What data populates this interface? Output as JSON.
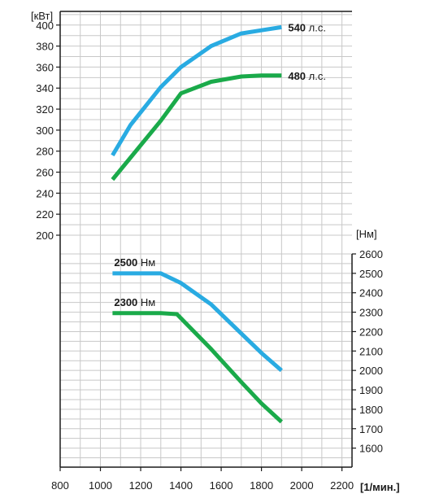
{
  "chart_data": {
    "type": "line",
    "x_axis": {
      "unit_label": "[1/мин.]",
      "range": [
        800,
        2250
      ],
      "ticks": [
        800,
        1000,
        1200,
        1400,
        1600,
        1800,
        2000,
        2200
      ],
      "tick_labels": [
        "800",
        "1000",
        "1200",
        "1400",
        "1600",
        "1800",
        "2000",
        "2200"
      ]
    },
    "left_axis": {
      "unit_label": "[кВт]",
      "ticks": [
        200,
        220,
        240,
        260,
        280,
        300,
        320,
        340,
        360,
        380,
        400
      ],
      "tick_labels": [
        "200",
        "220",
        "240",
        "260",
        "280",
        "300",
        "320",
        "340",
        "360",
        "380",
        "400"
      ],
      "range": [
        200,
        413
      ]
    },
    "right_axis": {
      "unit_label": "[Нм]",
      "ticks": [
        1600,
        1700,
        1800,
        1900,
        2000,
        2100,
        2200,
        2300,
        2400,
        2500,
        2600
      ],
      "tick_labels": [
        "1600",
        "1700",
        "1800",
        "1900",
        "2000",
        "2100",
        "2200",
        "2300",
        "2400",
        "2500",
        "2600"
      ],
      "range": [
        1502,
        2600
      ]
    },
    "grid": true,
    "series": [
      {
        "axis": "left",
        "color": "#29abe2",
        "label_value": "540",
        "label_unit": "л.с.",
        "points": [
          [
            1060,
            276
          ],
          [
            1150,
            305
          ],
          [
            1300,
            341
          ],
          [
            1400,
            360
          ],
          [
            1550,
            380
          ],
          [
            1700,
            392
          ],
          [
            1800,
            395
          ],
          [
            1900,
            398
          ]
        ]
      },
      {
        "axis": "left",
        "color": "#1aaa4a",
        "label_value": "480",
        "label_unit": "л.с.",
        "points": [
          [
            1060,
            253
          ],
          [
            1150,
            274
          ],
          [
            1300,
            309
          ],
          [
            1400,
            335
          ],
          [
            1550,
            346
          ],
          [
            1700,
            351
          ],
          [
            1800,
            352
          ],
          [
            1900,
            352
          ]
        ]
      },
      {
        "axis": "right",
        "color": "#29abe2",
        "label_value": "2500",
        "label_unit": "Нм",
        "points": [
          [
            1060,
            2500
          ],
          [
            1300,
            2500
          ],
          [
            1400,
            2450
          ],
          [
            1550,
            2340
          ],
          [
            1700,
            2190
          ],
          [
            1800,
            2090
          ],
          [
            1900,
            2000
          ]
        ]
      },
      {
        "axis": "right",
        "color": "#1aaa4a",
        "label_value": "2300",
        "label_unit": "Нм",
        "points": [
          [
            1060,
            2295
          ],
          [
            1300,
            2295
          ],
          [
            1380,
            2290
          ],
          [
            1550,
            2110
          ],
          [
            1700,
            1940
          ],
          [
            1800,
            1830
          ],
          [
            1900,
            1735
          ]
        ]
      }
    ]
  }
}
